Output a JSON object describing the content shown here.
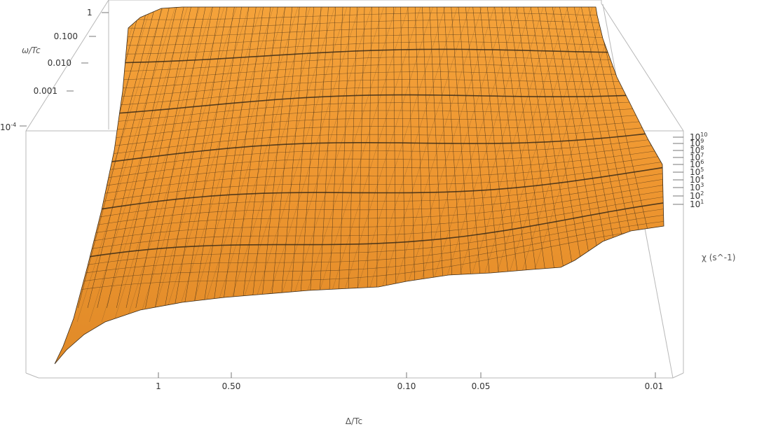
{
  "chart_data": {
    "type": "surface3d",
    "xlabel": "Δ/Tc",
    "ylabel": "ω/Tc",
    "zlabel": "χ (s^-1)",
    "x_scale": "log",
    "y_scale": "log",
    "z_scale": "log",
    "x_ticks": [
      "1",
      "0.50",
      "0.10",
      "0.05",
      "0.01"
    ],
    "y_ticks": [
      "10^-4",
      "0.001",
      "0.010",
      "0.100",
      "1"
    ],
    "z_ticks": [
      "10^1",
      "10^2",
      "10^3",
      "10^4",
      "10^5",
      "10^6",
      "10^7",
      "10^8",
      "10^9",
      "10^10"
    ],
    "surface_color": "#f29a2e",
    "mesh_color": "#3a2a18"
  }
}
